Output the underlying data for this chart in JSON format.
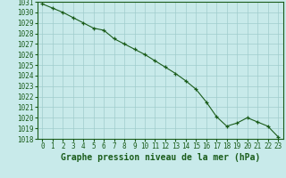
{
  "x": [
    0,
    1,
    2,
    3,
    4,
    5,
    6,
    7,
    8,
    9,
    10,
    11,
    12,
    13,
    14,
    15,
    16,
    17,
    18,
    19,
    20,
    21,
    22,
    23
  ],
  "y": [
    1030.8,
    1030.4,
    1030.0,
    1029.5,
    1029.0,
    1028.5,
    1028.3,
    1027.5,
    1027.0,
    1026.5,
    1026.0,
    1025.4,
    1024.8,
    1024.2,
    1023.5,
    1022.7,
    1021.5,
    1020.1,
    1019.2,
    1019.5,
    1020.0,
    1019.6,
    1019.2,
    1018.2
  ],
  "line_color": "#1a5c1a",
  "marker_color": "#1a5c1a",
  "bg_color": "#c8eaea",
  "grid_color": "#a0cccc",
  "title": "Graphe pression niveau de la mer (hPa)",
  "ylim_min": 1018,
  "ylim_max": 1031,
  "xlim_min": -0.5,
  "xlim_max": 23.5,
  "yticks": [
    1018,
    1019,
    1020,
    1021,
    1022,
    1023,
    1024,
    1025,
    1026,
    1027,
    1028,
    1029,
    1030,
    1031
  ],
  "xticks": [
    0,
    1,
    2,
    3,
    4,
    5,
    6,
    7,
    8,
    9,
    10,
    11,
    12,
    13,
    14,
    15,
    16,
    17,
    18,
    19,
    20,
    21,
    22,
    23
  ],
  "tick_fontsize": 5.5,
  "xlabel_fontsize": 7,
  "marker_size": 3.5,
  "linewidth": 0.8
}
